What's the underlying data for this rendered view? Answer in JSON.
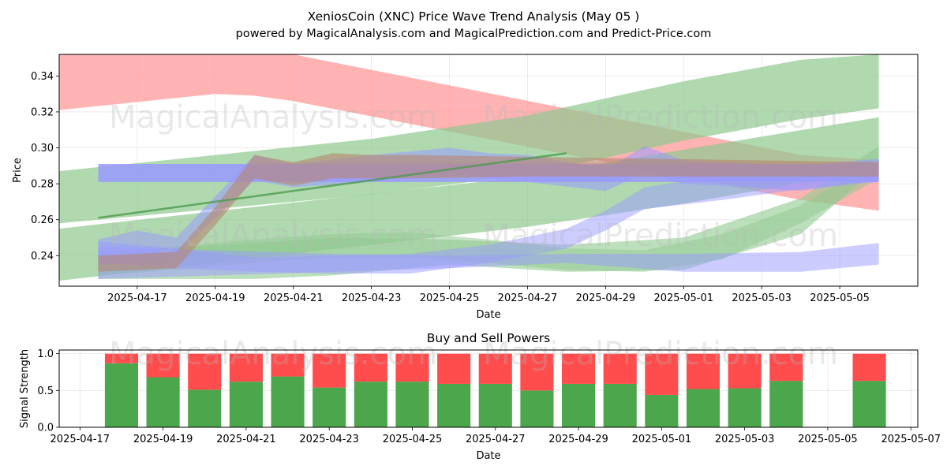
{
  "header": {
    "title": "XeniosCoin (XNC) Price Wave Trend Analysis (May 05 )",
    "subtitle": "powered by MagicalAnalysis.com and MagicalPrediction.com and Predict-Price.com"
  },
  "watermarks": [
    "MagicalAnalysis.com",
    "MagicalPrediction.com"
  ],
  "colors": {
    "buy": "#4ca64c",
    "sell": "#ff4c4c",
    "band_red": "#ff9999",
    "band_green": "#8fc98f",
    "band_blue": "#9999ff"
  },
  "chart_data": [
    {
      "type": "area",
      "title": "",
      "xlabel": "Date",
      "ylabel": "Price",
      "xlim": [
        "2025-04-15",
        "2025-05-07"
      ],
      "ylim": [
        0.223,
        0.352
      ],
      "x_ticks": [
        "2025-04-17",
        "2025-04-19",
        "2025-04-21",
        "2025-04-23",
        "2025-04-25",
        "2025-04-27",
        "2025-04-29",
        "2025-05-01",
        "2025-05-03",
        "2025-05-05"
      ],
      "y_ticks": [
        0.24,
        0.26,
        0.28,
        0.3,
        0.32,
        0.34
      ],
      "grid": true,
      "bands": [
        {
          "color": "red",
          "alpha": 0.75,
          "x": [
            "2025-04-15",
            "2025-04-19",
            "2025-04-20",
            "2025-04-21",
            "2025-05-04",
            "2025-05-06"
          ],
          "upper": [
            0.352,
            0.354,
            0.353,
            0.352,
            0.296,
            0.293
          ],
          "lower": [
            0.321,
            0.33,
            0.329,
            0.326,
            0.271,
            0.265
          ]
        },
        {
          "color": "red",
          "alpha": 0.5,
          "x": [
            "2025-04-20",
            "2025-05-06"
          ],
          "upper": [
            0.292,
            0.292
          ],
          "lower": [
            0.285,
            0.285
          ]
        },
        {
          "color": "green",
          "alpha": 0.7,
          "x": [
            "2025-04-15",
            "2025-04-23",
            "2025-04-27",
            "2025-05-01",
            "2025-05-04",
            "2025-05-06"
          ],
          "upper": [
            0.287,
            0.305,
            0.318,
            0.337,
            0.349,
            0.352
          ],
          "lower": [
            0.258,
            0.274,
            0.285,
            0.304,
            0.316,
            0.322
          ]
        },
        {
          "color": "green",
          "alpha": 0.7,
          "x": [
            "2025-04-15",
            "2025-04-27",
            "2025-05-01",
            "2025-05-06"
          ],
          "upper": [
            0.255,
            0.284,
            0.299,
            0.317
          ],
          "lower": [
            0.226,
            0.256,
            0.269,
            0.288
          ]
        },
        {
          "color": "green",
          "alpha": 0.6,
          "x": [
            "2025-04-16",
            "2025-04-20",
            "2025-04-22",
            "2025-04-25",
            "2025-04-28",
            "2025-05-01",
            "2025-05-04",
            "2025-05-06"
          ],
          "upper": [
            0.242,
            0.247,
            0.25,
            0.249,
            0.246,
            0.25,
            0.272,
            0.301
          ],
          "lower": [
            0.227,
            0.227,
            0.229,
            0.235,
            0.231,
            0.232,
            0.252,
            0.29
          ]
        },
        {
          "color": "green",
          "alpha": 0.5,
          "x": [
            "2025-04-16",
            "2025-04-18",
            "2025-04-20",
            "2025-04-22",
            "2025-04-24",
            "2025-04-26",
            "2025-04-28",
            "2025-04-30",
            "2025-05-02",
            "2025-05-04",
            "2025-05-06"
          ],
          "upper": [
            0.239,
            0.245,
            0.249,
            0.252,
            0.253,
            0.249,
            0.244,
            0.243,
            0.252,
            0.268,
            0.294
          ],
          "lower": [
            0.229,
            0.232,
            0.236,
            0.239,
            0.239,
            0.236,
            0.232,
            0.231,
            0.238,
            0.258,
            0.283
          ]
        },
        {
          "color": "blue",
          "alpha": 0.55,
          "x": [
            "2025-04-16",
            "2025-04-17",
            "2025-04-18",
            "2025-04-20",
            "2025-04-21",
            "2025-04-23",
            "2025-04-24",
            "2025-04-25",
            "2025-04-26",
            "2025-04-27",
            "2025-04-29",
            "2025-04-30",
            "2025-05-01",
            "2025-05-02",
            "2025-05-04",
            "2025-05-06"
          ],
          "upper": [
            0.249,
            0.254,
            0.25,
            0.296,
            0.291,
            0.296,
            0.298,
            0.3,
            0.297,
            0.296,
            0.288,
            0.301,
            0.293,
            0.292,
            0.29,
            0.293
          ],
          "lower": [
            0.235,
            0.236,
            0.24,
            0.282,
            0.278,
            0.281,
            0.283,
            0.286,
            0.283,
            0.281,
            0.276,
            0.286,
            0.28,
            0.279,
            0.276,
            0.282
          ]
        },
        {
          "color": "blue",
          "alpha": 0.85,
          "x": [
            "2025-04-16",
            "2025-05-06"
          ],
          "upper": [
            0.291,
            0.291
          ],
          "lower": [
            0.281,
            0.281
          ]
        },
        {
          "color": "blue",
          "alpha": 0.5,
          "x": [
            "2025-04-16",
            "2025-04-18",
            "2025-04-20",
            "2025-04-22",
            "2025-04-24",
            "2025-04-26",
            "2025-04-28",
            "2025-04-29",
            "2025-04-30",
            "2025-05-02",
            "2025-05-04",
            "2025-05-06"
          ],
          "upper": [
            0.248,
            0.244,
            0.239,
            0.24,
            0.241,
            0.246,
            0.255,
            0.265,
            0.278,
            0.285,
            0.29,
            0.294
          ],
          "lower": [
            0.236,
            0.233,
            0.231,
            0.23,
            0.23,
            0.236,
            0.244,
            0.254,
            0.266,
            0.271,
            0.277,
            0.281
          ]
        },
        {
          "color": "blue",
          "alpha": 0.5,
          "x": [
            "2025-04-16",
            "2025-04-19",
            "2025-04-22",
            "2025-04-25",
            "2025-04-28",
            "2025-05-01",
            "2025-05-04",
            "2025-05-06"
          ],
          "upper": [
            0.245,
            0.243,
            0.241,
            0.24,
            0.241,
            0.241,
            0.242,
            0.247
          ],
          "lower": [
            0.227,
            0.229,
            0.231,
            0.233,
            0.236,
            0.231,
            0.231,
            0.235
          ]
        },
        {
          "color": "brown",
          "alpha": 0.6,
          "x": [
            "2025-04-16",
            "2025-04-18",
            "2025-04-19",
            "2025-04-20",
            "2025-04-21",
            "2025-04-22",
            "2025-04-23",
            "2025-04-24",
            "2025-04-27",
            "2025-05-06"
          ],
          "upper": [
            0.24,
            0.242,
            0.267,
            0.296,
            0.292,
            0.297,
            0.296,
            0.296,
            0.295,
            0.292
          ],
          "lower": [
            0.231,
            0.233,
            0.257,
            0.283,
            0.279,
            0.283,
            0.283,
            0.283,
            0.284,
            0.284
          ]
        }
      ],
      "lines": [
        {
          "color": "green",
          "x": [
            "2025-04-16",
            "2025-04-28"
          ],
          "y": [
            0.261,
            0.297
          ]
        }
      ]
    },
    {
      "type": "bar",
      "title": "Buy and Sell Powers",
      "xlabel": "Date",
      "ylabel": "Signal Strength",
      "xlim": [
        "2025-04-16T12:00",
        "2025-05-07T04:00"
      ],
      "ylim": [
        0,
        1.05
      ],
      "x_ticks": [
        "2025-04-17",
        "2025-04-19",
        "2025-04-21",
        "2025-04-23",
        "2025-04-25",
        "2025-04-27",
        "2025-04-29",
        "2025-05-01",
        "2025-05-03",
        "2025-05-05",
        "2025-05-07"
      ],
      "y_ticks": [
        "0.0",
        "0.5",
        "1.0"
      ],
      "grid": true,
      "series": [
        {
          "name": "Buy",
          "x": [
            "2025-04-18",
            "2025-04-19",
            "2025-04-20",
            "2025-04-21",
            "2025-04-22",
            "2025-04-23",
            "2025-04-24",
            "2025-04-25",
            "2025-04-26",
            "2025-04-27",
            "2025-04-28",
            "2025-04-29",
            "2025-04-30",
            "2025-05-01",
            "2025-05-02",
            "2025-05-03",
            "2025-05-04",
            "2025-05-06"
          ],
          "values": [
            0.87,
            0.68,
            0.51,
            0.62,
            0.69,
            0.54,
            0.62,
            0.62,
            0.59,
            0.59,
            0.5,
            0.59,
            0.59,
            0.44,
            0.52,
            0.53,
            0.63,
            0.63
          ]
        },
        {
          "name": "Sell",
          "x": [
            "2025-04-18",
            "2025-04-19",
            "2025-04-20",
            "2025-04-21",
            "2025-04-22",
            "2025-04-23",
            "2025-04-24",
            "2025-04-25",
            "2025-04-26",
            "2025-04-27",
            "2025-04-28",
            "2025-04-29",
            "2025-04-30",
            "2025-05-01",
            "2025-05-02",
            "2025-05-03",
            "2025-05-04",
            "2025-05-06"
          ],
          "values": [
            0.13,
            0.32,
            0.49,
            0.38,
            0.31,
            0.46,
            0.38,
            0.38,
            0.41,
            0.41,
            0.5,
            0.41,
            0.41,
            0.56,
            0.48,
            0.47,
            0.37,
            0.37
          ]
        }
      ]
    }
  ]
}
